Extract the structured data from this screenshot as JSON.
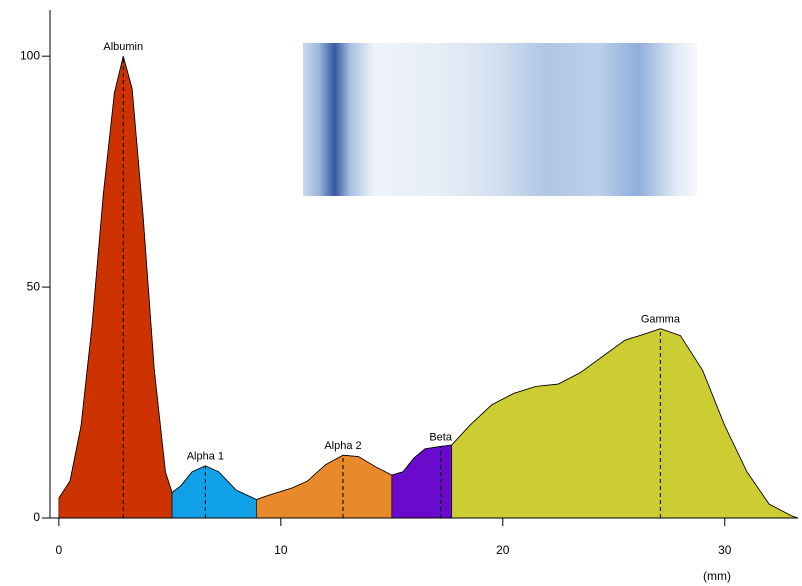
{
  "chart_data": {
    "type": "densitogram",
    "x_label": "(mm)",
    "x": [
      0,
      0.5,
      1,
      1.5,
      2,
      2.5,
      2.9,
      3.3,
      3.8,
      4.3,
      4.8,
      5.1,
      5.5,
      6,
      6.6,
      7.2,
      8,
      8.9,
      9.5,
      10.5,
      11.2,
      12,
      12.8,
      13.5,
      14.3,
      15.0,
      15.5,
      16,
      16.5,
      17.2,
      17.7,
      18.5,
      19.5,
      20.5,
      21.5,
      22.5,
      23.5,
      24.5,
      25.5,
      26.5,
      27.1,
      28,
      29,
      30,
      31,
      32,
      33,
      33.3
    ],
    "values": [
      4.3,
      8,
      20,
      42,
      70,
      92,
      100,
      93,
      65,
      32,
      10,
      5.5,
      7,
      10,
      11.3,
      10,
      6,
      4,
      5,
      6.5,
      8,
      11.5,
      13.6,
      13.3,
      11,
      9.3,
      10,
      13,
      15,
      15.5,
      15.8,
      20,
      24.5,
      27,
      28.5,
      29,
      31.5,
      35,
      38.5,
      40,
      41,
      39.5,
      32,
      20,
      10,
      3,
      0.5,
      0
    ],
    "fractions": [
      {
        "name": "Albumin",
        "color": "#cc3300",
        "from": 0,
        "to": 5.1,
        "peak": 2.9
      },
      {
        "name": "Alpha 1",
        "color": "#10a0e8",
        "from": 5.1,
        "to": 8.9,
        "peak": 6.6
      },
      {
        "name": "Alpha 2",
        "color": "#e8892a",
        "from": 8.9,
        "to": 15.0,
        "peak": 12.8
      },
      {
        "name": "Beta",
        "color": "#6a0acc",
        "from": 15.0,
        "to": 17.7,
        "peak": 17.2
      },
      {
        "name": "Gamma",
        "color": "#cccc33",
        "from": 17.7,
        "to": 33.3,
        "peak": 27.1
      }
    ],
    "xlim": [
      -0.4,
      33.3
    ],
    "xticks": [
      0,
      10,
      20,
      30
    ],
    "ylim": [
      0,
      110
    ],
    "yticks": [
      0,
      50,
      100
    ]
  }
}
